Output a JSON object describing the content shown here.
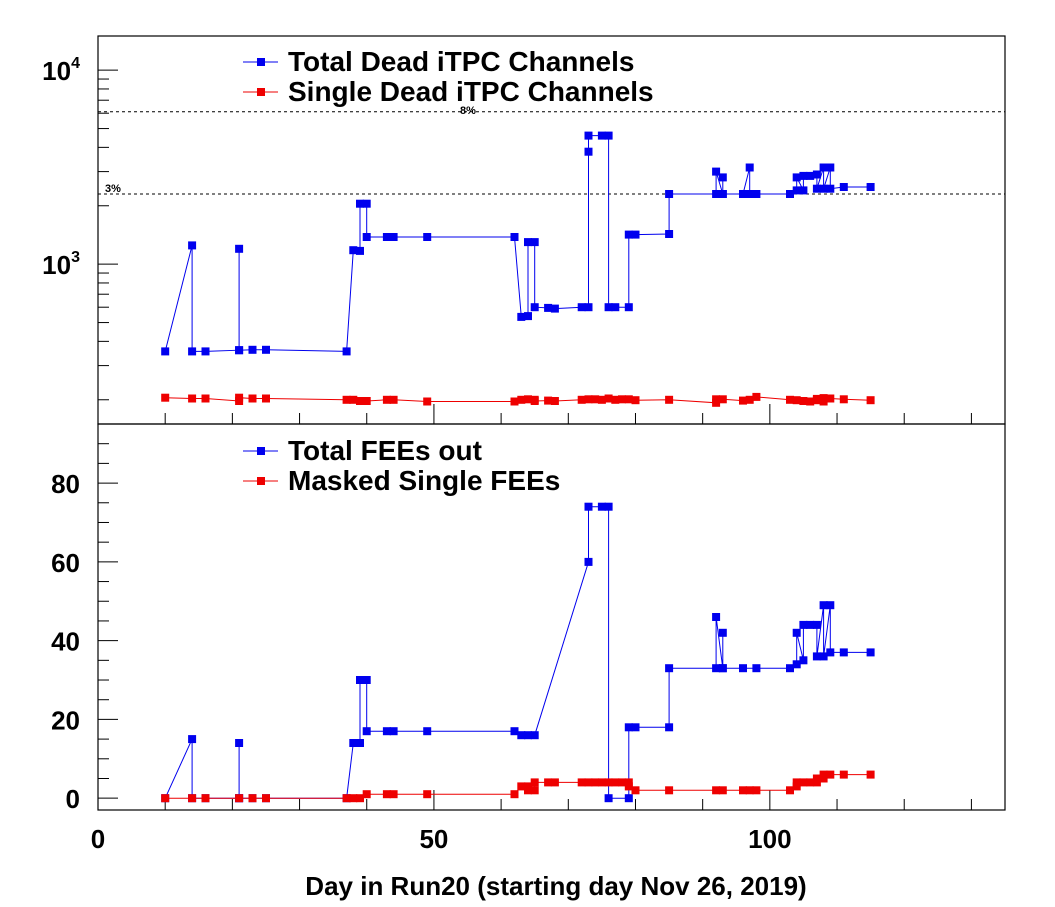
{
  "chart_data": [
    {
      "type": "line",
      "yscale": "log",
      "ylim": [
        150,
        15000
      ],
      "xlim": [
        0,
        135
      ],
      "xlabel": "Day in Run20 (starting day Nov 26, 2019)",
      "legend_position": "top-center",
      "y_tick_labels": [
        {
          "base": "10",
          "exp": "3",
          "value": 1000
        },
        {
          "base": "10",
          "exp": "4",
          "value": 10000
        }
      ],
      "reference_lines": [
        {
          "label": "8%",
          "value": 6100
        },
        {
          "label": "3%",
          "value": 2300
        }
      ],
      "series": [
        {
          "name": "Total Dead iTPC Channels",
          "color": "#0000ee",
          "points": [
            [
              10,
              355
            ],
            [
              14,
              1250
            ],
            [
              14,
              355
            ],
            [
              16,
              355
            ],
            [
              21,
              360
            ],
            [
              21,
              1200
            ],
            [
              21,
              360
            ],
            [
              23,
              362
            ],
            [
              25,
              362
            ],
            [
              37,
              355
            ],
            [
              38,
              1180
            ],
            [
              39,
              1170
            ],
            [
              39,
              2050
            ],
            [
              40,
              2050
            ],
            [
              40,
              1380
            ],
            [
              43,
              1380
            ],
            [
              44,
              1380
            ],
            [
              49,
              1380
            ],
            [
              62,
              1380
            ],
            [
              63,
              535
            ],
            [
              64,
              540
            ],
            [
              64,
              1300
            ],
            [
              65,
              1300
            ],
            [
              65,
              600
            ],
            [
              67,
              595
            ],
            [
              68,
              590
            ],
            [
              72,
              600
            ],
            [
              73,
              600
            ],
            [
              73,
              3800
            ],
            [
              73,
              4600
            ],
            [
              75,
              4600
            ],
            [
              76,
              4600
            ],
            [
              76,
              600
            ],
            [
              77,
              600
            ],
            [
              79,
              600
            ],
            [
              79,
              1420
            ],
            [
              80,
              1420
            ],
            [
              85,
              1430
            ],
            [
              85,
              2300
            ],
            [
              92,
              2300
            ],
            [
              92,
              3000
            ],
            [
              93,
              2300
            ],
            [
              93,
              2800
            ],
            [
              93,
              2300
            ],
            [
              96,
              2300
            ],
            [
              97,
              3150
            ],
            [
              97,
              2300
            ],
            [
              98,
              2300
            ],
            [
              103,
              2300
            ],
            [
              104,
              2400
            ],
            [
              104,
              2800
            ],
            [
              105,
              2400
            ],
            [
              105,
              2850
            ],
            [
              106,
              2850
            ],
            [
              107,
              2900
            ],
            [
              107,
              2450
            ],
            [
              108,
              3150
            ],
            [
              108,
              2450
            ],
            [
              109,
              3150
            ],
            [
              109,
              2450
            ],
            [
              111,
              2500
            ],
            [
              115,
              2500
            ]
          ]
        },
        {
          "name": "Single Dead iTPC Channels",
          "color": "#ee0000",
          "points": [
            [
              10,
              205
            ],
            [
              14,
              203
            ],
            [
              16,
              203
            ],
            [
              21,
              197
            ],
            [
              21,
              205
            ],
            [
              23,
              203
            ],
            [
              25,
              203
            ],
            [
              37,
              200
            ],
            [
              38,
              200
            ],
            [
              39,
              197
            ],
            [
              40,
              197
            ],
            [
              43,
              200
            ],
            [
              44,
              200
            ],
            [
              49,
              196
            ],
            [
              62,
              196
            ],
            [
              63,
              200
            ],
            [
              64,
              201
            ],
            [
              65,
              200
            ],
            [
              65,
              197
            ],
            [
              67,
              198
            ],
            [
              68,
              197
            ],
            [
              72,
              200
            ],
            [
              73,
              201
            ],
            [
              74,
              201
            ],
            [
              75,
              200
            ],
            [
              76,
              203
            ],
            [
              77,
              200
            ],
            [
              78,
              201
            ],
            [
              79,
              201
            ],
            [
              80,
              199
            ],
            [
              85,
              200
            ],
            [
              92,
              193
            ],
            [
              92,
              201
            ],
            [
              93,
              201
            ],
            [
              96,
              198
            ],
            [
              97,
              200
            ],
            [
              98,
              207
            ],
            [
              103,
              200
            ],
            [
              104,
              199
            ],
            [
              105,
              197
            ],
            [
              106,
              196
            ],
            [
              107,
              199
            ],
            [
              107,
              202
            ],
            [
              108,
              204
            ],
            [
              108,
              196
            ],
            [
              109,
              203
            ],
            [
              111,
              201
            ],
            [
              115,
              199
            ]
          ]
        }
      ]
    },
    {
      "type": "line",
      "ylim": [
        -3,
        95
      ],
      "xlim": [
        0,
        135
      ],
      "xlabel": "Day in Run20 (starting day Nov 26, 2019)",
      "legend_position": "top-center",
      "y_ticks": [
        0,
        20,
        40,
        60,
        80
      ],
      "x_ticks": [
        0,
        50,
        100
      ],
      "series": [
        {
          "name": "Total FEEs out",
          "color": "#0000ee",
          "points": [
            [
              10,
              0
            ],
            [
              14,
              15
            ],
            [
              14,
              0
            ],
            [
              16,
              0
            ],
            [
              21,
              0
            ],
            [
              21,
              14
            ],
            [
              21,
              0
            ],
            [
              23,
              0
            ],
            [
              25,
              0
            ],
            [
              37,
              0
            ],
            [
              38,
              14
            ],
            [
              39,
              14
            ],
            [
              39,
              30
            ],
            [
              40,
              30
            ],
            [
              40,
              17
            ],
            [
              43,
              17
            ],
            [
              44,
              17
            ],
            [
              49,
              17
            ],
            [
              62,
              17
            ],
            [
              63,
              16
            ],
            [
              64,
              16
            ],
            [
              65,
              16
            ],
            [
              73,
              60
            ],
            [
              73,
              74
            ],
            [
              75,
              74
            ],
            [
              76,
              74
            ],
            [
              76,
              0
            ],
            [
              79,
              0
            ],
            [
              79,
              18
            ],
            [
              80,
              18
            ],
            [
              85,
              18
            ],
            [
              85,
              33
            ],
            [
              92,
              33
            ],
            [
              92,
              46
            ],
            [
              93,
              33
            ],
            [
              93,
              42
            ],
            [
              93,
              33
            ],
            [
              96,
              33
            ],
            [
              98,
              33
            ],
            [
              103,
              33
            ],
            [
              104,
              34
            ],
            [
              104,
              42
            ],
            [
              105,
              35
            ],
            [
              105,
              44
            ],
            [
              106,
              44
            ],
            [
              107,
              44
            ],
            [
              107,
              36
            ],
            [
              108,
              49
            ],
            [
              108,
              36
            ],
            [
              109,
              49
            ],
            [
              109,
              37
            ],
            [
              111,
              37
            ],
            [
              115,
              37
            ]
          ]
        },
        {
          "name": "Masked Single FEEs",
          "color": "#ee0000",
          "points": [
            [
              10,
              0
            ],
            [
              14,
              0
            ],
            [
              16,
              0
            ],
            [
              21,
              0
            ],
            [
              23,
              0
            ],
            [
              25,
              0
            ],
            [
              37,
              0
            ],
            [
              38,
              0
            ],
            [
              39,
              0
            ],
            [
              40,
              1
            ],
            [
              43,
              1
            ],
            [
              44,
              1
            ],
            [
              49,
              1
            ],
            [
              62,
              1
            ],
            [
              63,
              3
            ],
            [
              64,
              3
            ],
            [
              64,
              2
            ],
            [
              65,
              2
            ],
            [
              65,
              4
            ],
            [
              67,
              4
            ],
            [
              68,
              4
            ],
            [
              72,
              4
            ],
            [
              73,
              4
            ],
            [
              74,
              4
            ],
            [
              75,
              4
            ],
            [
              76,
              4
            ],
            [
              77,
              4
            ],
            [
              78,
              4
            ],
            [
              79,
              4
            ],
            [
              79,
              3
            ],
            [
              80,
              2
            ],
            [
              85,
              2
            ],
            [
              92,
              2
            ],
            [
              93,
              2
            ],
            [
              96,
              2
            ],
            [
              97,
              2
            ],
            [
              98,
              2
            ],
            [
              103,
              2
            ],
            [
              104,
              3
            ],
            [
              104,
              4
            ],
            [
              105,
              4
            ],
            [
              106,
              4
            ],
            [
              107,
              4
            ],
            [
              107,
              5
            ],
            [
              108,
              5
            ],
            [
              108,
              6
            ],
            [
              109,
              6
            ],
            [
              111,
              6
            ],
            [
              115,
              6
            ]
          ]
        }
      ]
    }
  ]
}
